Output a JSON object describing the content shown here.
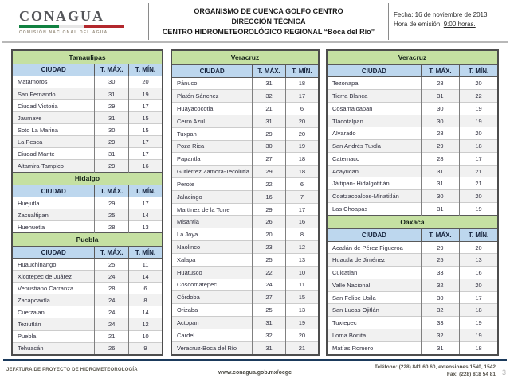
{
  "header": {
    "logo_brand": "CONAGUA",
    "logo_tagline": "COMISIÓN NACIONAL DEL AGUA",
    "title_line1": "ORGANISMO DE CUENCA GOLFO CENTRO",
    "title_line2": "DIRECCIÓN TÉCNICA",
    "title_line3": "CENTRO HIDROMETEOROLÓGICO REGIONAL “Boca del Río”",
    "fecha": "Fecha: 16 de noviembre de 2013",
    "hora_label": "Hora de emisión: ",
    "hora_value": "9:00 horas."
  },
  "column_headers": {
    "ciudad": "CIUDAD",
    "tmax": "T. MÁX.",
    "tmin": "T. MÍN."
  },
  "tables": {
    "col1": {
      "sections": [
        {
          "state": "Tamaulipas",
          "rows": [
            [
              "Matamoros",
              "30",
              "20"
            ],
            [
              "San Fernando",
              "31",
              "19"
            ],
            [
              "Ciudad Victoria",
              "29",
              "17"
            ],
            [
              "Jaumave",
              "31",
              "15"
            ],
            [
              "Soto La Marina",
              "30",
              "15"
            ],
            [
              "La Pesca",
              "29",
              "17"
            ],
            [
              "Ciudad Mante",
              "31",
              "17"
            ],
            [
              "Altamira-Tampico",
              "29",
              "16"
            ]
          ]
        },
        {
          "state": "Hidalgo",
          "rows": [
            [
              "Huejutla",
              "29",
              "17"
            ],
            [
              "Zacualtipan",
              "25",
              "14"
            ],
            [
              "Huehuetla",
              "28",
              "13"
            ]
          ]
        },
        {
          "state": "Puebla",
          "rows": [
            [
              "Huauchinango",
              "25",
              "11"
            ],
            [
              "Xicotepec de Juárez",
              "24",
              "14"
            ],
            [
              "Venustiano Carranza",
              "28",
              "6"
            ],
            [
              "Zacapoaxtla",
              "24",
              "8"
            ],
            [
              "Cuetzalan",
              "24",
              "14"
            ],
            [
              "Teziutlán",
              "24",
              "12"
            ],
            [
              "Puebla",
              "21",
              "10"
            ],
            [
              "Tehuacán",
              "26",
              "9"
            ]
          ]
        }
      ]
    },
    "col2": {
      "sections": [
        {
          "state": "Veracruz",
          "rows": [
            [
              "Pánuco",
              "31",
              "18"
            ],
            [
              "Platón Sánchez",
              "32",
              "17"
            ],
            [
              "Huayacocotla",
              "21",
              "6"
            ],
            [
              "Cerro Azul",
              "31",
              "20"
            ],
            [
              "Tuxpan",
              "29",
              "20"
            ],
            [
              "Poza Rica",
              "30",
              "19"
            ],
            [
              "Papantla",
              "27",
              "18"
            ],
            [
              "Gutiérrez Zamora-Tecolutla",
              "29",
              "18"
            ],
            [
              "Perote",
              "22",
              "6"
            ],
            [
              "Jalacingo",
              "16",
              "7"
            ],
            [
              "Martínez de la Torre",
              "29",
              "17"
            ],
            [
              "Misantla",
              "26",
              "16"
            ],
            [
              "La Joya",
              "20",
              "8"
            ],
            [
              "Naolinco",
              "23",
              "12"
            ],
            [
              "Xalapa",
              "25",
              "13"
            ],
            [
              "Huatusco",
              "22",
              "10"
            ],
            [
              "Coscomatepec",
              "24",
              "11"
            ],
            [
              "Córdoba",
              "27",
              "15"
            ],
            [
              "Orizaba",
              "25",
              "13"
            ],
            [
              "Actopan",
              "31",
              "19"
            ],
            [
              "Cardel",
              "32",
              "20"
            ],
            [
              "Veracruz-Boca del Río",
              "31",
              "21"
            ]
          ]
        }
      ]
    },
    "col3": {
      "sections": [
        {
          "state": "Veracruz",
          "rows": [
            [
              "Tezonapa",
              "28",
              "20"
            ],
            [
              "Tierra Blanca",
              "31",
              "22"
            ],
            [
              "Cosamaloapan",
              "30",
              "19"
            ],
            [
              "Tlacotalpan",
              "30",
              "19"
            ],
            [
              "Alvarado",
              "28",
              "20"
            ],
            [
              "San Andrés Tuxtla",
              "29",
              "18"
            ],
            [
              "Catemaco",
              "28",
              "17"
            ],
            [
              "Acayucan",
              "31",
              "21"
            ],
            [
              "Jáltipan- Hidalgotitlán",
              "31",
              "21"
            ],
            [
              "Coatzacoalcos-Minatitlán",
              "30",
              "20"
            ],
            [
              "Las Choapas",
              "31",
              "19"
            ]
          ]
        },
        {
          "state": "Oaxaca",
          "rows": [
            [
              "Acatlán de Pérez Figueroa",
              "29",
              "20"
            ],
            [
              "Huautla  de Jiménez",
              "25",
              "13"
            ],
            [
              "Cuicatlan",
              "33",
              "16"
            ],
            [
              "Valle Nacional",
              "32",
              "20"
            ],
            [
              "San Felipe Usila",
              "30",
              "17"
            ],
            [
              "San Lucas Ojitlán",
              "32",
              "18"
            ],
            [
              "Tuxtepec",
              "33",
              "19"
            ],
            [
              "Loma Bonita",
              "32",
              "19"
            ],
            [
              "Matías Romero",
              "31",
              "18"
            ]
          ]
        }
      ]
    }
  },
  "footer": {
    "left": "JEFATURA DE PROYECTO DE HIDROMETEOROLOGÍA",
    "center": "www.conagua.gob.mx/ocgc",
    "right_line1": "Teléfono: (228) 841 60 60, extensiones 1540, 1542",
    "right_line2": "Fax: (228) 818 54 81",
    "page_number": "3"
  },
  "colors": {
    "state_header_bg": "#c5e0a2",
    "column_header_bg": "#bdd7ee",
    "footer_line": "#1b3a5c",
    "logo_green": "#118141",
    "logo_red": "#b3282d"
  }
}
